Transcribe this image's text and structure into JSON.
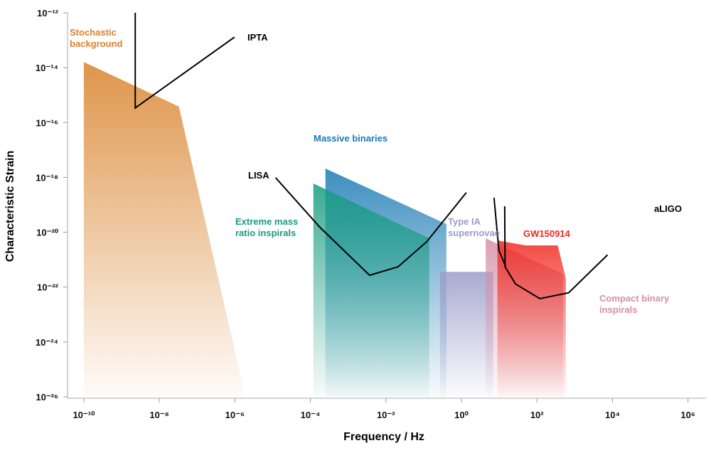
{
  "chart_data": {
    "type": "area",
    "xlabel": "Frequency / Hz",
    "ylabel": "Characteristic Strain",
    "xscale": "log",
    "yscale": "log",
    "xlim": [
      3.4e-11,
      3000000.0
    ],
    "ylim": [
      1e-26,
      1e-12
    ],
    "xticks": [
      {
        "value": 1e-10,
        "label": "10⁻¹⁰"
      },
      {
        "value": 1e-08,
        "label": "10⁻⁸"
      },
      {
        "value": 1e-06,
        "label": "10⁻⁶"
      },
      {
        "value": 0.0001,
        "label": "10⁻⁴"
      },
      {
        "value": 0.01,
        "label": "10⁻²"
      },
      {
        "value": 1,
        "label": "10⁰"
      },
      {
        "value": 100,
        "label": "10²"
      },
      {
        "value": 10000.0,
        "label": "10⁴"
      },
      {
        "value": 1000000.0,
        "label": "10⁶"
      }
    ],
    "yticks": [
      {
        "value": 1e-12,
        "label": "10⁻¹²"
      },
      {
        "value": 1e-14,
        "label": "10⁻¹⁴"
      },
      {
        "value": 1e-16,
        "label": "10⁻¹⁶"
      },
      {
        "value": 1e-18,
        "label": "10⁻¹⁸"
      },
      {
        "value": 1e-20,
        "label": "10⁻²⁰"
      },
      {
        "value": 1e-22,
        "label": "10⁻²²"
      },
      {
        "value": 1e-24,
        "label": "10⁻²⁴"
      },
      {
        "value": 1e-26,
        "label": "10⁻²⁶"
      }
    ],
    "series": [
      {
        "name": "Stochastic background",
        "type": "area",
        "color": "#d9822b",
        "x": [
          1e-10,
          1e-10,
          3.3e-08,
          1.9e-06
        ],
        "values": [
          1e-26,
          1.6e-14,
          3.8e-16,
          1e-26
        ]
      },
      {
        "name": "Massive binaries",
        "type": "area",
        "color": "#1a7ab5",
        "x": [
          0.00025,
          0.00025,
          0.4,
          0.4
        ],
        "values": [
          1e-26,
          2.1e-18,
          2e-20,
          1e-26
        ]
      },
      {
        "name": "Extreme mass ratio inspirals",
        "type": "area",
        "color": "#169b7f",
        "x": [
          0.00012,
          0.00012,
          0.14,
          0.14
        ],
        "values": [
          1e-26,
          6e-19,
          6e-21,
          1e-26
        ]
      },
      {
        "name": "Type IA supernovae",
        "type": "area",
        "color": "#9a9cc8",
        "x": [
          0.27,
          0.27,
          6.9,
          6.9
        ],
        "values": [
          1e-26,
          3.6e-22,
          3.6e-22,
          1e-26
        ]
      },
      {
        "name": "Compact binary inspirals",
        "type": "area",
        "color": "#d58fa8",
        "x": [
          4.4,
          4.4,
          490,
          490
        ],
        "values": [
          1e-26,
          6e-21,
          3e-22,
          1e-26
        ]
      },
      {
        "name": "GW150914",
        "type": "area",
        "color": "#f0281e",
        "x": [
          9,
          9,
          50,
          186,
          355,
          580,
          580
        ],
        "values": [
          1e-26,
          5e-21,
          3.3e-21,
          3.3e-21,
          3.3e-21,
          2.1e-22,
          1e-26
        ]
      },
      {
        "name": "IPTA",
        "type": "line",
        "color": "#000000",
        "x": [
          2.3e-09,
          2.3e-09,
          9.8e-07
        ],
        "values": [
          1e-12,
          3.4e-16,
          1.3e-13
        ]
      },
      {
        "name": "LISA",
        "type": "line",
        "color": "#000000",
        "x": [
          1.2e-05,
          0.00018,
          0.0037,
          0.021,
          0.12,
          1.35
        ],
        "values": [
          9.7e-19,
          1.5e-20,
          2.7e-22,
          5.5e-22,
          4.5e-21,
          2.8e-19
        ]
      },
      {
        "name": "aLIGO",
        "type": "line",
        "color": "#000000",
        "x": [
          7.3,
          9.8,
          15,
          null,
          14,
          14.3,
          27,
          120,
          690,
          7400
        ],
        "values": [
          1.8e-19,
          2.2e-21,
          5.5e-22,
          null,
          8.9e-20,
          5.5e-22,
          1.3e-22,
          3.8e-23,
          6.2e-23,
          1.5e-21
        ]
      }
    ]
  }
}
